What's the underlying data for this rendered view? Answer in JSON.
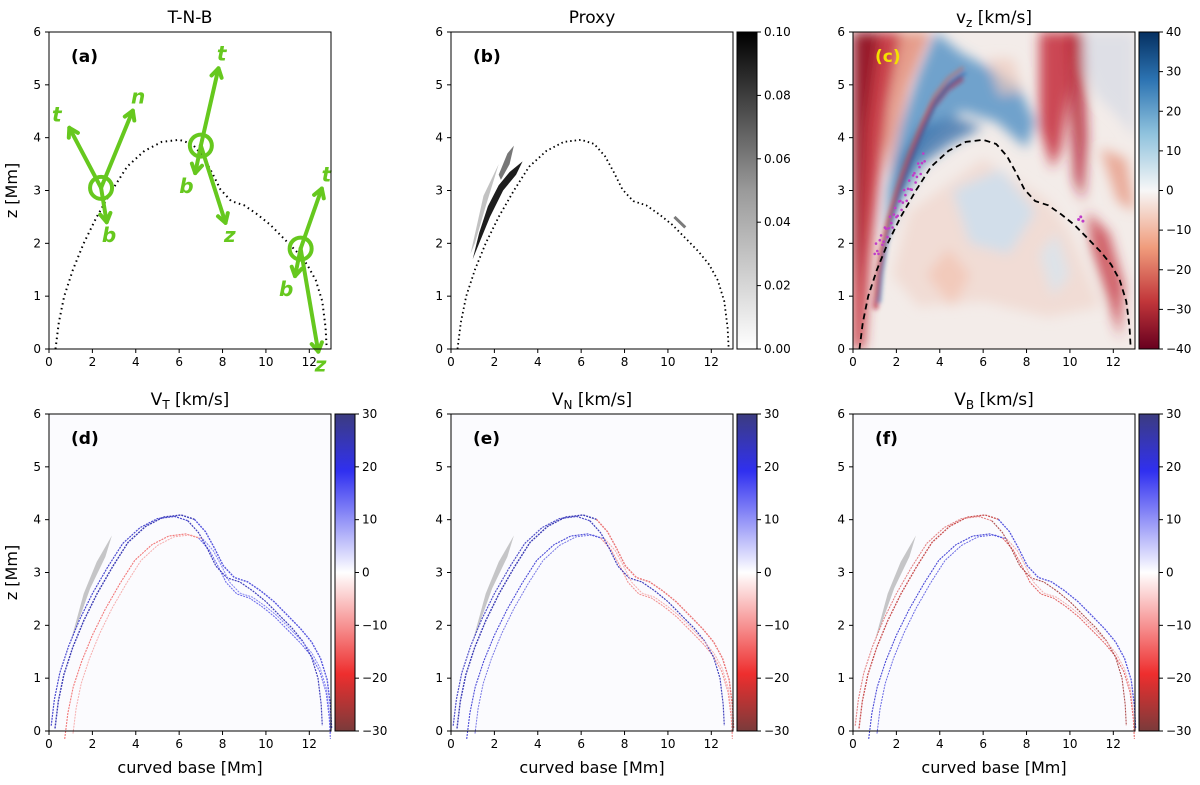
{
  "figure": {
    "shared_xlabel": "curved base [Mm]",
    "shared_ylabel": "z [Mm]"
  },
  "chart_data": [
    {
      "type": "line",
      "panel": "(a)",
      "title": "T-N-B",
      "xlabel": "",
      "ylabel": "z [Mm]",
      "xlim": [
        0,
        13
      ],
      "ylim": [
        0,
        6
      ],
      "xticks": [
        0,
        2,
        4,
        6,
        8,
        10,
        12
      ],
      "yticks": [
        0,
        1,
        2,
        3,
        4,
        5,
        6
      ],
      "loop": {
        "style": "dotted",
        "color": "#000000",
        "x": [
          0.3,
          0.45,
          0.7,
          1.1,
          1.6,
          2.2,
          2.9,
          3.6,
          4.4,
          5.2,
          6.0,
          6.6,
          7.1,
          7.5,
          7.9,
          8.4,
          9.0,
          9.6,
          10.2,
          10.8,
          11.4,
          11.9,
          12.3,
          12.6,
          12.75,
          12.8
        ],
        "y": [
          0.0,
          0.5,
          1.0,
          1.5,
          2.0,
          2.5,
          3.0,
          3.45,
          3.75,
          3.92,
          3.96,
          3.88,
          3.65,
          3.35,
          3.02,
          2.8,
          2.72,
          2.55,
          2.35,
          2.1,
          1.85,
          1.6,
          1.3,
          0.9,
          0.4,
          0.0
        ]
      },
      "frames": {
        "color": "#66c81e",
        "points": [
          {
            "x": 2.4,
            "y": 3.05,
            "labels": [
              "t",
              "n",
              "b"
            ]
          },
          {
            "x": 7.0,
            "y": 3.85,
            "labels": [
              "t",
              "z",
              "b"
            ]
          },
          {
            "x": 11.6,
            "y": 1.9,
            "labels": [
              "t",
              "z",
              "b"
            ]
          }
        ]
      }
    },
    {
      "type": "heatmap",
      "panel": "(b)",
      "title": "Proxy",
      "xlim": [
        0,
        13
      ],
      "ylim": [
        0,
        6
      ],
      "xticks": [
        0,
        2,
        4,
        6,
        8,
        10,
        12
      ],
      "yticks": [
        0,
        1,
        2,
        3,
        4,
        5,
        6
      ],
      "colormap": "Greys",
      "colorbar": {
        "min": 0.0,
        "max": 0.1,
        "ticks": [
          "0.00",
          "0.02",
          "0.04",
          "0.06",
          "0.08",
          "0.10"
        ]
      },
      "features": [
        "Strong proxy along left leg (x 1 to 3.5, z 1.7 to 3.8)",
        "Weak proxy near x 10.5, z 2.4"
      ]
    },
    {
      "type": "heatmap",
      "panel": "(c)",
      "title": "v",
      "title_sub": "z",
      "title_unit": " [km/s]",
      "xlim": [
        0,
        13
      ],
      "ylim": [
        0,
        6
      ],
      "xticks": [
        0,
        2,
        4,
        6,
        8,
        10,
        12
      ],
      "yticks": [
        0,
        1,
        2,
        3,
        4,
        5,
        6
      ],
      "colormap": "RdBu",
      "colorbar": {
        "min": -40,
        "max": 40,
        "ticks": [
          "40",
          "30",
          "20",
          "10",
          "0",
          "−10",
          "−20",
          "−30",
          "−40"
        ]
      },
      "loop_style": "dashed",
      "label_color": "#f5e000"
    },
    {
      "type": "heatmap",
      "panel": "(d)",
      "title": "V",
      "title_sub": "T",
      "title_unit": " [km/s]",
      "xlabel": "curved base [Mm]",
      "ylabel": "z [Mm]",
      "xlim": [
        0,
        13
      ],
      "ylim": [
        0,
        6
      ],
      "xticks": [
        0,
        2,
        4,
        6,
        8,
        10,
        12
      ],
      "yticks": [
        0,
        1,
        2,
        3,
        4,
        5,
        6
      ],
      "colormap": "seismic_r",
      "colorbar": {
        "min": -30,
        "max": 30,
        "ticks": [
          "30",
          "20",
          "10",
          "0",
          "−10",
          "−20",
          "−30"
        ]
      }
    },
    {
      "type": "heatmap",
      "panel": "(e)",
      "title": "V",
      "title_sub": "N",
      "title_unit": " [km/s]",
      "xlabel": "curved base [Mm]",
      "xlim": [
        0,
        13
      ],
      "ylim": [
        0,
        6
      ],
      "xticks": [
        0,
        2,
        4,
        6,
        8,
        10,
        12
      ],
      "yticks": [
        0,
        1,
        2,
        3,
        4,
        5,
        6
      ],
      "colormap": "seismic_r",
      "colorbar": {
        "min": -30,
        "max": 30,
        "ticks": [
          "30",
          "20",
          "10",
          "0",
          "−10",
          "−20",
          "−30"
        ]
      }
    },
    {
      "type": "heatmap",
      "panel": "(f)",
      "title": "V",
      "title_sub": "B",
      "title_unit": " [km/s]",
      "xlabel": "curved base [Mm]",
      "xlim": [
        0,
        13
      ],
      "ylim": [
        0,
        6
      ],
      "xticks": [
        0,
        2,
        4,
        6,
        8,
        10,
        12
      ],
      "yticks": [
        0,
        1,
        2,
        3,
        4,
        5,
        6
      ],
      "colormap": "seismic_r",
      "colorbar": {
        "min": -30,
        "max": 30,
        "ticks": [
          "30",
          "20",
          "10",
          "0",
          "−10",
          "−20",
          "−30"
        ]
      }
    }
  ]
}
